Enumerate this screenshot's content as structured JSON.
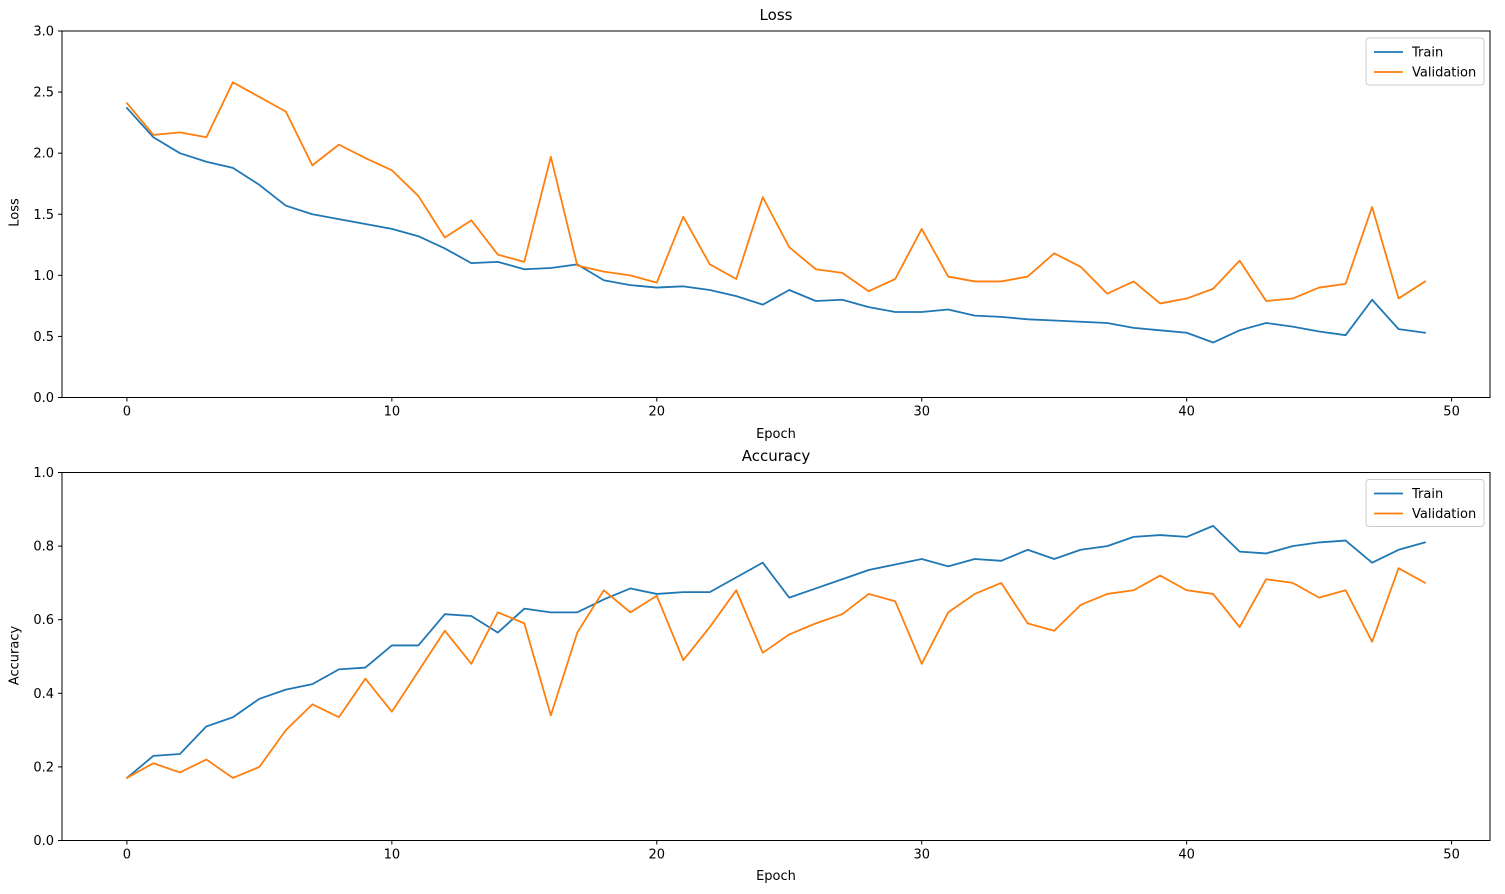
{
  "colors": {
    "train": "#1f77b4",
    "validation": "#ff7f0e",
    "spine": "#000000",
    "text": "#000000",
    "legend_border": "#cccccc",
    "background": "#ffffff"
  },
  "legend": {
    "labels": [
      "Train",
      "Validation"
    ]
  },
  "chart_data": [
    {
      "type": "line",
      "title": "Loss",
      "xlabel": "Epoch",
      "ylabel": "Loss",
      "xlim": [
        -2.45,
        51.45
      ],
      "ylim": [
        0,
        3
      ],
      "grid": false,
      "legend_position": "upper right",
      "x_tick_values": [
        0,
        10,
        20,
        30,
        40,
        50
      ],
      "x_tick_labels": [
        "0",
        "10",
        "20",
        "30",
        "40",
        "50"
      ],
      "y_tick_values": [
        0.0,
        0.5,
        1.0,
        1.5,
        2.0,
        2.5,
        3.0
      ],
      "y_tick_labels": [
        "0.0",
        "0.5",
        "1.0",
        "1.5",
        "2.0",
        "2.5",
        "3.0"
      ],
      "x": [
        0,
        1,
        2,
        3,
        4,
        5,
        6,
        7,
        8,
        9,
        10,
        11,
        12,
        13,
        14,
        15,
        16,
        17,
        18,
        19,
        20,
        21,
        22,
        23,
        24,
        25,
        26,
        27,
        28,
        29,
        30,
        31,
        32,
        33,
        34,
        35,
        36,
        37,
        38,
        39,
        40,
        41,
        42,
        43,
        44,
        45,
        46,
        47,
        48,
        49
      ],
      "series": [
        {
          "name": "Train",
          "color_key": "train",
          "values": [
            2.37,
            2.13,
            2.0,
            1.93,
            1.88,
            1.74,
            1.57,
            1.5,
            1.46,
            1.42,
            1.38,
            1.32,
            1.22,
            1.1,
            1.11,
            1.05,
            1.06,
            1.09,
            0.96,
            0.92,
            0.9,
            0.91,
            0.88,
            0.83,
            0.76,
            0.88,
            0.79,
            0.8,
            0.74,
            0.7,
            0.7,
            0.72,
            0.67,
            0.66,
            0.64,
            0.63,
            0.62,
            0.61,
            0.57,
            0.55,
            0.53,
            0.45,
            0.55,
            0.61,
            0.58,
            0.54,
            0.51,
            0.8,
            0.56,
            0.53
          ]
        },
        {
          "name": "Validation",
          "color_key": "validation",
          "values": [
            2.41,
            2.15,
            2.17,
            2.13,
            2.58,
            2.46,
            2.34,
            1.9,
            2.07,
            1.96,
            1.86,
            1.65,
            1.31,
            1.45,
            1.17,
            1.11,
            1.97,
            1.08,
            1.03,
            1.0,
            0.94,
            1.48,
            1.09,
            0.97,
            1.64,
            1.23,
            1.05,
            1.02,
            0.87,
            0.97,
            1.38,
            0.99,
            0.95,
            0.95,
            0.99,
            1.18,
            1.07,
            0.85,
            0.95,
            0.77,
            0.81,
            0.89,
            1.12,
            0.79,
            0.81,
            0.9,
            0.93,
            1.56,
            0.81,
            0.95
          ]
        }
      ]
    },
    {
      "type": "line",
      "title": "Accuracy",
      "xlabel": "Epoch",
      "ylabel": "Accuracy",
      "xlim": [
        -2.45,
        51.45
      ],
      "ylim": [
        0,
        1
      ],
      "grid": false,
      "legend_position": "upper right",
      "x_tick_values": [
        0,
        10,
        20,
        30,
        40,
        50
      ],
      "x_tick_labels": [
        "0",
        "10",
        "20",
        "30",
        "40",
        "50"
      ],
      "y_tick_values": [
        0.0,
        0.2,
        0.4,
        0.6,
        0.8,
        1.0
      ],
      "y_tick_labels": [
        "0.0",
        "0.2",
        "0.4",
        "0.6",
        "0.8",
        "1.0"
      ],
      "x": [
        0,
        1,
        2,
        3,
        4,
        5,
        6,
        7,
        8,
        9,
        10,
        11,
        12,
        13,
        14,
        15,
        16,
        17,
        18,
        19,
        20,
        21,
        22,
        23,
        24,
        25,
        26,
        27,
        28,
        29,
        30,
        31,
        32,
        33,
        34,
        35,
        36,
        37,
        38,
        39,
        40,
        41,
        42,
        43,
        44,
        45,
        46,
        47,
        48,
        49
      ],
      "series": [
        {
          "name": "Train",
          "color_key": "train",
          "values": [
            0.17,
            0.23,
            0.235,
            0.31,
            0.335,
            0.385,
            0.41,
            0.425,
            0.465,
            0.47,
            0.53,
            0.53,
            0.615,
            0.61,
            0.565,
            0.63,
            0.62,
            0.62,
            0.655,
            0.685,
            0.67,
            0.675,
            0.675,
            0.715,
            0.755,
            0.66,
            0.685,
            0.71,
            0.735,
            0.75,
            0.765,
            0.745,
            0.765,
            0.76,
            0.79,
            0.765,
            0.79,
            0.8,
            0.825,
            0.83,
            0.825,
            0.855,
            0.785,
            0.78,
            0.8,
            0.81,
            0.815,
            0.755,
            0.79,
            0.81
          ]
        },
        {
          "name": "Validation",
          "color_key": "validation",
          "values": [
            0.17,
            0.21,
            0.185,
            0.22,
            0.17,
            0.2,
            0.3,
            0.37,
            0.335,
            0.44,
            0.35,
            0.46,
            0.57,
            0.48,
            0.62,
            0.59,
            0.34,
            0.565,
            0.68,
            0.62,
            0.665,
            0.49,
            0.58,
            0.68,
            0.51,
            0.56,
            0.59,
            0.615,
            0.67,
            0.65,
            0.48,
            0.62,
            0.67,
            0.7,
            0.59,
            0.57,
            0.64,
            0.67,
            0.68,
            0.72,
            0.68,
            0.67,
            0.58,
            0.71,
            0.7,
            0.66,
            0.68,
            0.54,
            0.74,
            0.7
          ]
        }
      ]
    }
  ]
}
